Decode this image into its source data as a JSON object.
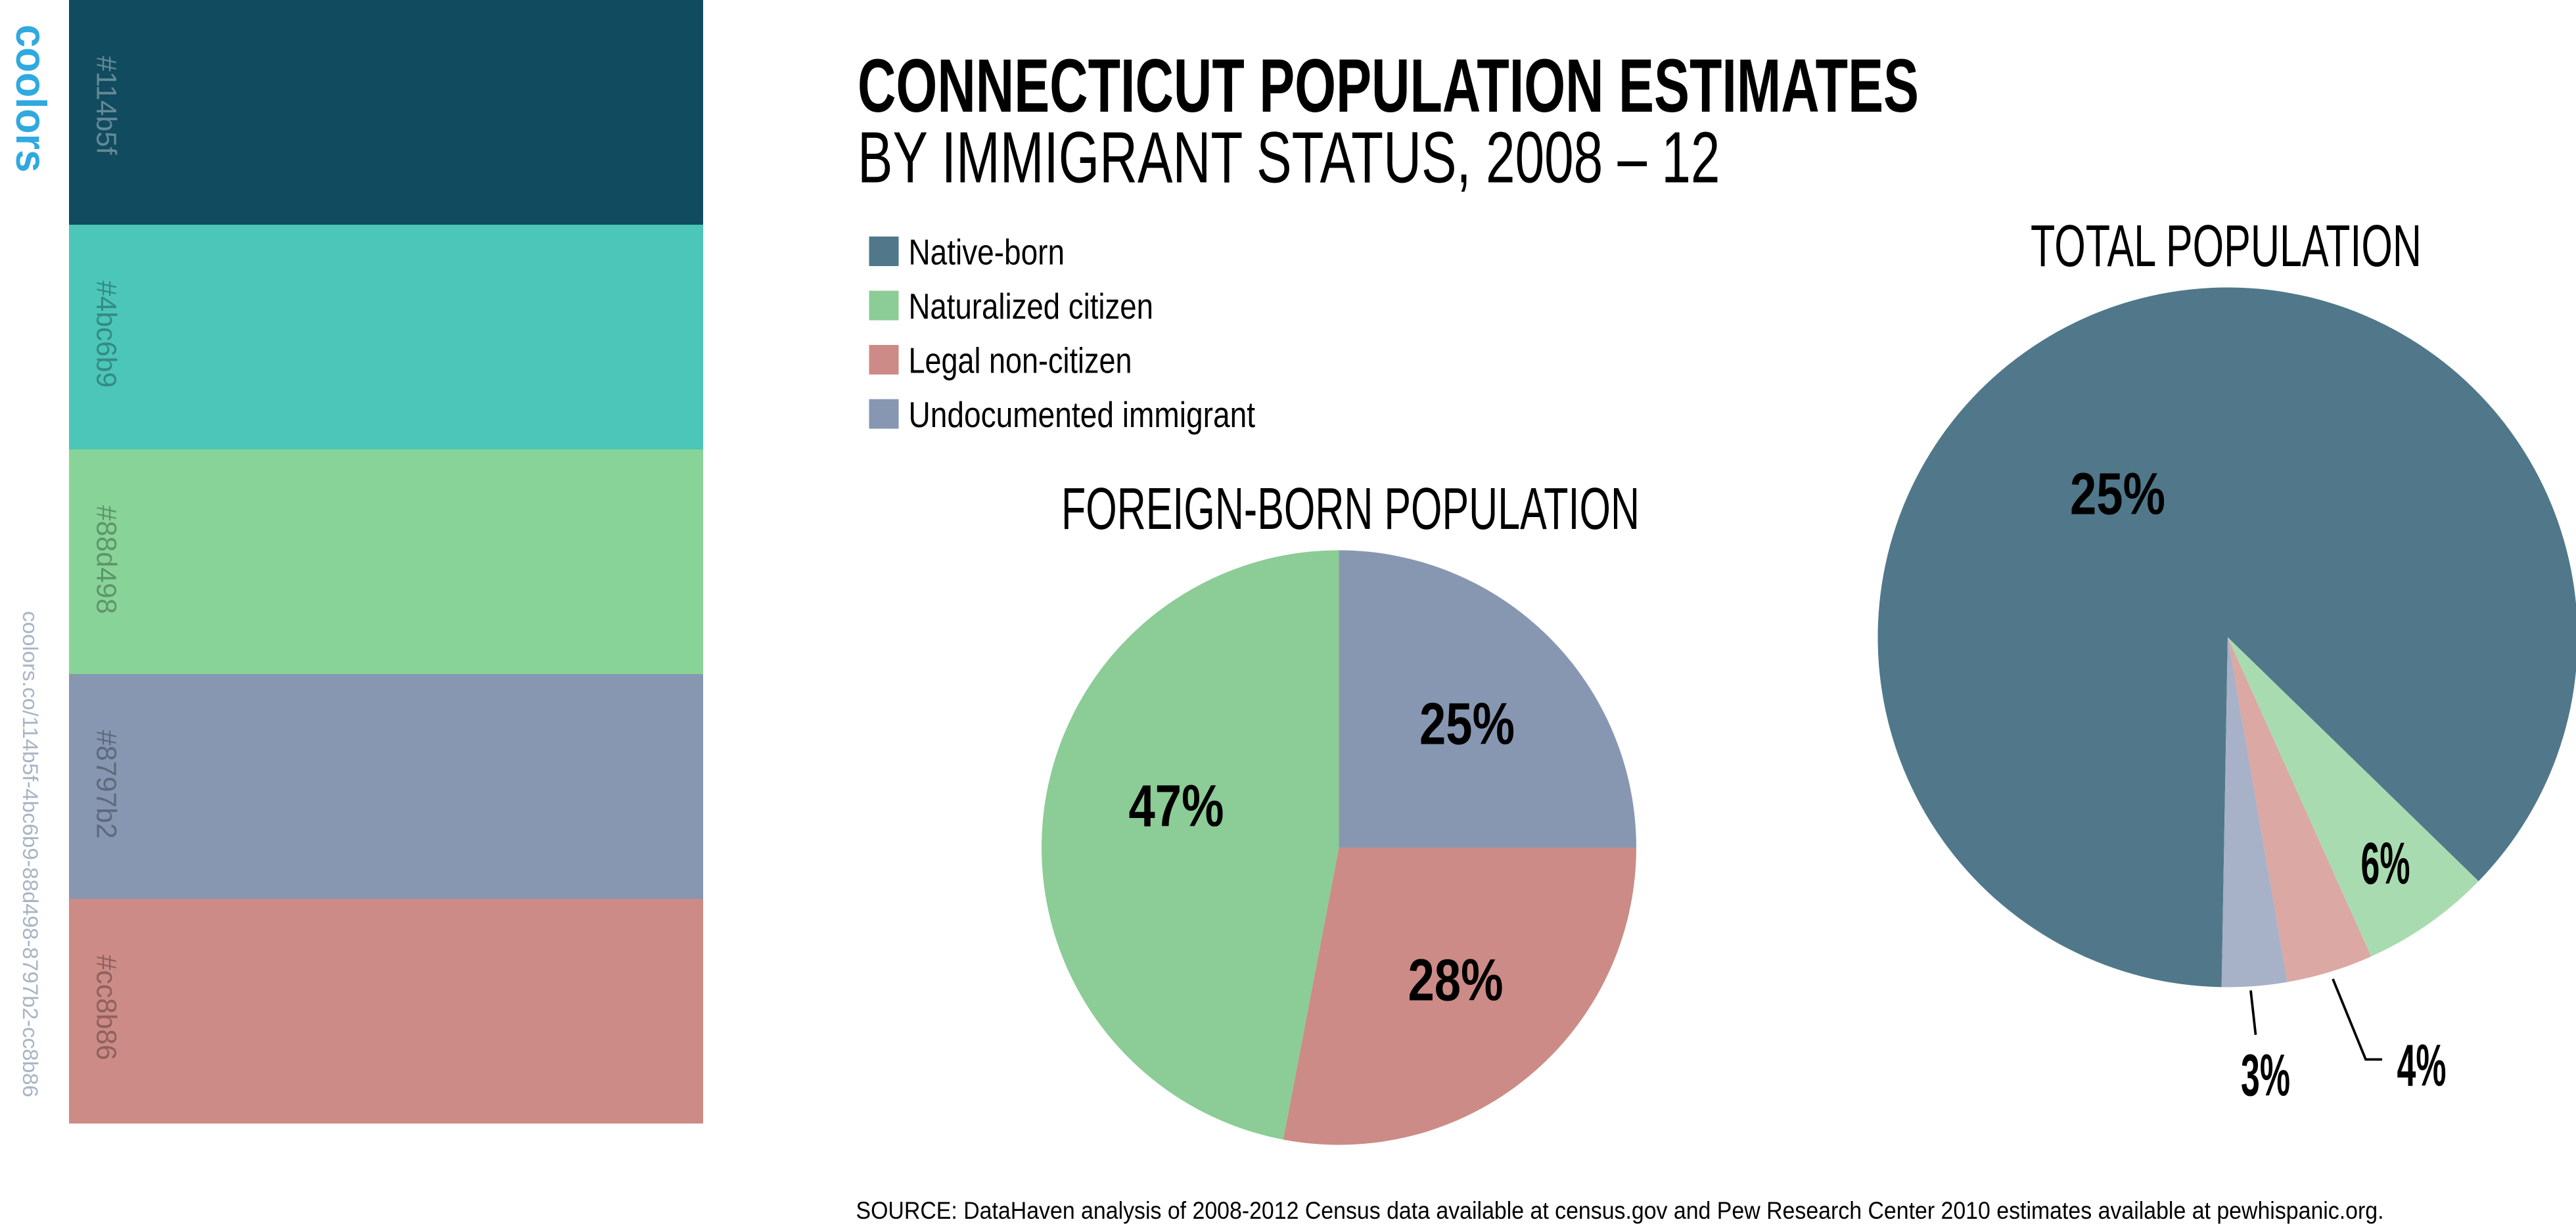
{
  "palette": {
    "brand": "coolors",
    "url": "coolors.co/114b5f-4bc6b9-88d498-8797b2-cc8b86",
    "swatches": [
      "#114b5f",
      "#4bc6b9",
      "#88d498",
      "#8797b2",
      "#cc8b86"
    ]
  },
  "infographic": {
    "title": "CONNECTICUT POPULATION ESTIMATES",
    "subtitle": "BY IMMIGRANT STATUS, 2008 – 12",
    "legend_colors": [
      "#50788a",
      "#8ccc96",
      "#cc8b86",
      "#8797b2"
    ],
    "source": "SOURCE: DataHaven analysis of 2008-2012 Census data available at census.gov and Pew Research Center 2010 estimates available at pewhispanic.org."
  },
  "chart_data": [
    {
      "type": "pie",
      "title": "FOREIGN-BORN POPULATION",
      "categories": [
        "Undocumented immigrant",
        "Legal non-citizen",
        "Naturalized citizen"
      ],
      "values": [
        25,
        28,
        47
      ],
      "value_labels": [
        "25%",
        "28%",
        "47%"
      ],
      "colors": [
        "#8797b2",
        "#cc8b86",
        "#8ccc96"
      ]
    },
    {
      "type": "pie",
      "title": "TOTAL POPULATION",
      "categories": [
        "Native-born",
        "Naturalized citizen",
        "Legal non-citizen",
        "Undocumented immigrant"
      ],
      "values": [
        87,
        6,
        4,
        3
      ],
      "value_labels": [
        null,
        "6%",
        "4%",
        "3%"
      ],
      "annotations": [
        "25%"
      ],
      "colors": [
        "#50788a",
        "#a8dcb0",
        "#dba8a4",
        "#a7b1c8"
      ]
    }
  ]
}
